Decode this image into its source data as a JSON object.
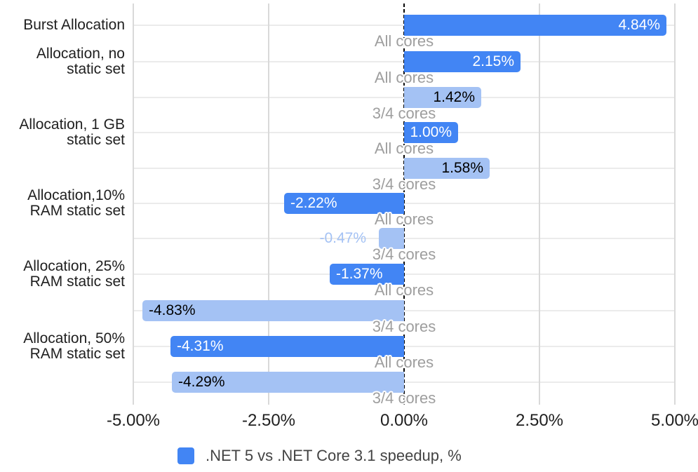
{
  "chart_data": {
    "type": "bar",
    "orientation": "horizontal",
    "value_axis": {
      "range": [
        -5,
        5
      ],
      "zero_line_style": "dashed",
      "ticks": [
        {
          "value": -5,
          "label": "-5.00%"
        },
        {
          "value": -2.5,
          "label": "-2.50%"
        },
        {
          "value": 0,
          "label": "0.00%"
        },
        {
          "value": 2.5,
          "label": "2.50%"
        },
        {
          "value": 5,
          "label": "5.00%"
        }
      ]
    },
    "categories": [
      {
        "lines": [
          "Burst Allocation"
        ]
      },
      {
        "lines": [
          "Allocation, no",
          "static set"
        ]
      },
      {
        "lines": [
          "Allocation, 1 GB",
          "static set"
        ]
      },
      {
        "lines": [
          "Allocation,10%",
          "RAM static set"
        ]
      },
      {
        "lines": [
          "Allocation, 25%",
          "RAM static set"
        ]
      },
      {
        "lines": [
          "Allocation, 50%",
          "RAM static set"
        ]
      }
    ],
    "bars": [
      {
        "category": 0,
        "core_label": "All cores",
        "value": 4.84,
        "label": "4.84%",
        "series": "primary"
      },
      {
        "category": 1,
        "core_label": "All cores",
        "value": 2.15,
        "label": "2.15%",
        "series": "primary"
      },
      {
        "category": 1,
        "core_label": "3/4 cores",
        "value": 1.42,
        "label": "1.42%",
        "series": "secondary"
      },
      {
        "category": 2,
        "core_label": "All cores",
        "value": 1.0,
        "label": "1.00%",
        "series": "primary"
      },
      {
        "category": 2,
        "core_label": "3/4 cores",
        "value": 1.58,
        "label": "1.58%",
        "series": "secondary"
      },
      {
        "category": 3,
        "core_label": "All cores",
        "value": -2.22,
        "label": "-2.22%",
        "series": "primary"
      },
      {
        "category": 3,
        "core_label": "3/4 cores",
        "value": -0.47,
        "label": "-0.47%",
        "series": "secondary"
      },
      {
        "category": 4,
        "core_label": "All cores",
        "value": -1.37,
        "label": "-1.37%",
        "series": "primary"
      },
      {
        "category": 4,
        "core_label": "3/4 cores",
        "value": -4.83,
        "label": "-4.83%",
        "series": "secondary"
      },
      {
        "category": 5,
        "core_label": "All cores",
        "value": -4.31,
        "label": "-4.31%",
        "series": "primary"
      },
      {
        "category": 5,
        "core_label": "3/4 cores",
        "value": -4.29,
        "label": "-4.29%",
        "series": "secondary"
      }
    ],
    "series_colors": {
      "primary": "#4285f4",
      "secondary": "#a4c2f4"
    },
    "annotation_colors": {
      "on_primary": "#ffffff",
      "on_secondary": "#000000",
      "outside": "#a4c2f4"
    },
    "grid": {
      "vertical_line_color": "#d9d9d9",
      "row_line_color": "#ebebeb",
      "zero_line_color": "#000000"
    },
    "legend": {
      "position": "bottom",
      "swatch_color": "#4285f4",
      "label": ".NET 5 vs .NET Core 3.1 speedup, %"
    }
  }
}
